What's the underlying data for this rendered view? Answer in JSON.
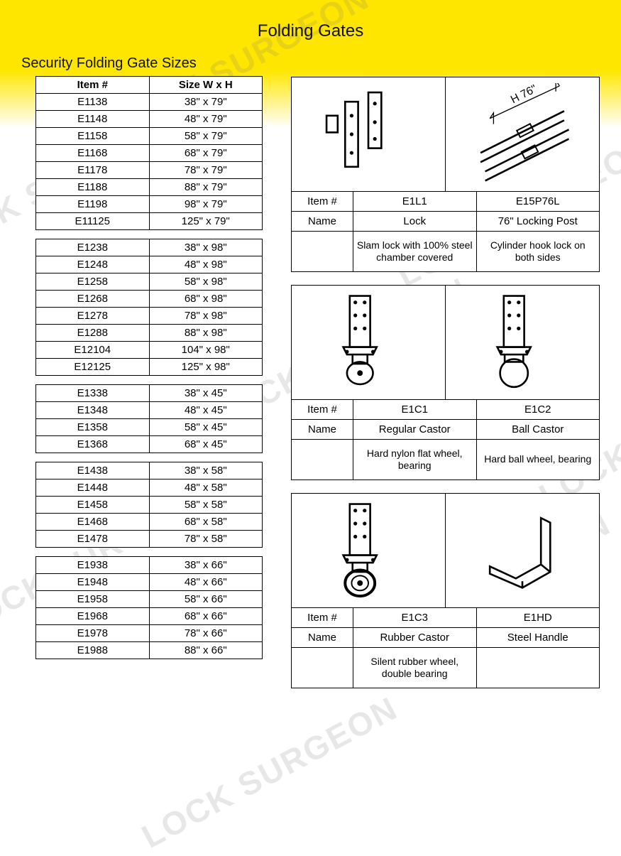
{
  "page": {
    "title": "Folding Gates"
  },
  "section": {
    "title": "Security Folding Gate Sizes"
  },
  "size_table": {
    "headers": [
      "Item #",
      "Size W x H"
    ],
    "groups": [
      [
        {
          "item": "E1138",
          "size": "38\" x 79\""
        },
        {
          "item": "E1148",
          "size": "48\" x 79\""
        },
        {
          "item": "E1158",
          "size": "58\" x 79\""
        },
        {
          "item": "E1168",
          "size": "68\" x 79\""
        },
        {
          "item": "E1178",
          "size": "78\" x 79\""
        },
        {
          "item": "E1188",
          "size": "88\" x 79\""
        },
        {
          "item": "E1198",
          "size": "98\" x 79\""
        },
        {
          "item": "E11125",
          "size": "125\" x 79\""
        }
      ],
      [
        {
          "item": "E1238",
          "size": "38\" x 98\""
        },
        {
          "item": "E1248",
          "size": "48\" x 98\""
        },
        {
          "item": "E1258",
          "size": "58\" x 98\""
        },
        {
          "item": "E1268",
          "size": "68\" x 98\""
        },
        {
          "item": "E1278",
          "size": "78\" x 98\""
        },
        {
          "item": "E1288",
          "size": "88\" x 98\""
        },
        {
          "item": "E12104",
          "size": "104\" x 98\""
        },
        {
          "item": "E12125",
          "size": "125\" x 98\""
        }
      ],
      [
        {
          "item": "E1338",
          "size": "38\" x 45\""
        },
        {
          "item": "E1348",
          "size": "48\" x 45\""
        },
        {
          "item": "E1358",
          "size": "58\" x 45\""
        },
        {
          "item": "E1368",
          "size": "68\" x 45\""
        }
      ],
      [
        {
          "item": "E1438",
          "size": "38\" x 58\""
        },
        {
          "item": "E1448",
          "size": "48\" x 58\""
        },
        {
          "item": "E1458",
          "size": "58\" x 58\""
        },
        {
          "item": "E1468",
          "size": "68\" x 58\""
        },
        {
          "item": "E1478",
          "size": "78\" x 58\""
        }
      ],
      [
        {
          "item": "E1938",
          "size": "38\" x 66\""
        },
        {
          "item": "E1948",
          "size": "48\" x 66\""
        },
        {
          "item": "E1958",
          "size": "58\" x 66\""
        },
        {
          "item": "E1968",
          "size": "68\" x 66\""
        },
        {
          "item": "E1978",
          "size": "78\" x 66\""
        },
        {
          "item": "E1988",
          "size": "88\" x 66\""
        }
      ]
    ]
  },
  "part_labels": {
    "item": "Item #",
    "name": "Name"
  },
  "parts": [
    {
      "items": [
        "E1L1",
        "E15P76L"
      ],
      "names": [
        "Lock",
        "76\" Locking Post"
      ],
      "descs": [
        "Slam lock with 100% steel chamber covered",
        "Cylinder hook lock on both sides"
      ],
      "img_annotation": "H 76\""
    },
    {
      "items": [
        "E1C1",
        "E1C2"
      ],
      "names": [
        "Regular Castor",
        "Ball Castor"
      ],
      "descs": [
        "Hard nylon flat wheel, bearing",
        "Hard ball wheel, bearing"
      ]
    },
    {
      "items": [
        "E1C3",
        "E1HD"
      ],
      "names": [
        "Rubber Castor",
        "Steel Handle"
      ],
      "descs": [
        "Silent rubber wheel, double bearing",
        ""
      ]
    }
  ],
  "watermark": {
    "text": "LOCK SURGEON",
    "color": "rgba(120,120,120,0.18)",
    "angle_deg": -28
  },
  "colors": {
    "yellow": "#ffe600",
    "border": "#000000",
    "text": "#111111",
    "background": "#ffffff"
  }
}
